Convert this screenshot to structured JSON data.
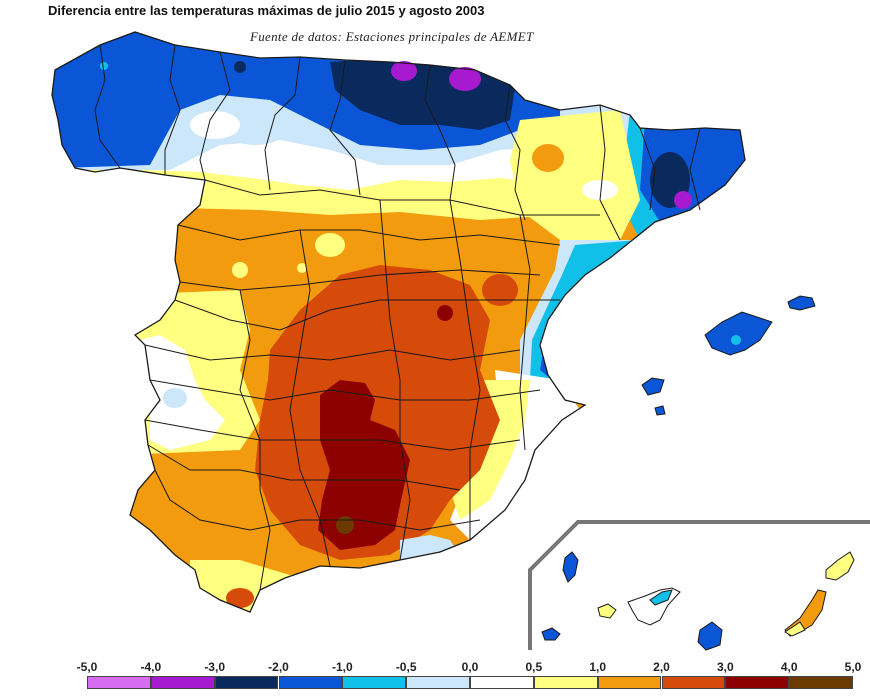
{
  "title": "Diferencia entre las temperaturas máximas de julio 2015 y agosto 2003",
  "subtitle": "Fuente de datos: Estaciones principales de AEMET",
  "legend": {
    "ticks": [
      "-5,0",
      "-4,0",
      "-3,0",
      "-2,0",
      "-1,0",
      "-0,5",
      "0,0",
      "0,5",
      "1,0",
      "2,0",
      "3,0",
      "4,0",
      "5,0"
    ],
    "bins": [
      {
        "from": "-5,0",
        "to": "-4,0",
        "color": "#d66cf0"
      },
      {
        "from": "-4,0",
        "to": "-3,0",
        "color": "#a81ad0"
      },
      {
        "from": "-3,0",
        "to": "-2,0",
        "color": "#0a2a5e"
      },
      {
        "from": "-2,0",
        "to": "-1,0",
        "color": "#0a56d6"
      },
      {
        "from": "-1,0",
        "to": "-0,5",
        "color": "#10c0e8"
      },
      {
        "from": "-0,5",
        "to": "0,0",
        "color": "#cce6fa"
      },
      {
        "from": "0,0",
        "to": "0,5",
        "color": "#ffffff"
      },
      {
        "from": "0,5",
        "to": "1,0",
        "color": "#ffff80"
      },
      {
        "from": "1,0",
        "to": "2,0",
        "color": "#f29b0f"
      },
      {
        "from": "2,0",
        "to": "3,0",
        "color": "#d64a0a"
      },
      {
        "from": "3,0",
        "to": "4,0",
        "color": "#8c0000"
      },
      {
        "from": "4,0",
        "to": "5,0",
        "color": "#6a3a00"
      }
    ]
  },
  "colors": {
    "border": "#1a1a1a",
    "canary_frame": "#777777"
  }
}
